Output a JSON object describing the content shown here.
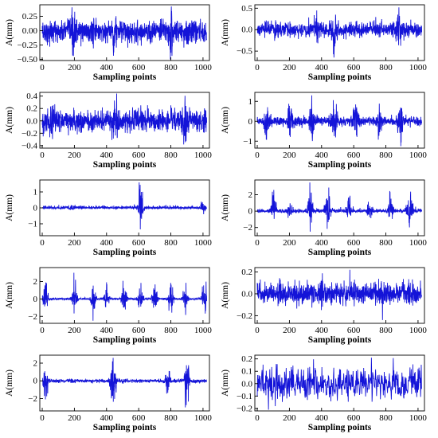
{
  "chart_data": [
    {
      "type": "line",
      "xlabel": "Sampling points",
      "ylabel": "A(mm)",
      "xlim": [
        -15,
        1040
      ],
      "ylim": [
        -0.52,
        0.45
      ],
      "xticks": [
        "0",
        "200",
        "400",
        "600",
        "800",
        "1000"
      ],
      "yticks": [
        "0.25",
        "0.00",
        "−0.25",
        "−0.50"
      ],
      "ytick_values": [
        0.25,
        0.0,
        -0.25,
        -0.5
      ],
      "color": "#1414d8",
      "series": [
        {
          "n_points": 1024,
          "amplitude": 0.14,
          "peak_min": -0.5,
          "peak_max": 0.42,
          "bursts": [
            {
              "x": 195,
              "amp": 0.2
            },
            {
              "x": 450,
              "amp": 0.12
            },
            {
              "x": 805,
              "amp": 0.2
            }
          ]
        }
      ]
    },
    {
      "type": "line",
      "xlabel": "Sampling points",
      "ylabel": "A(mm)",
      "xlim": [
        -15,
        1040
      ],
      "ylim": [
        -0.72,
        0.58
      ],
      "xticks": [
        "0",
        "200",
        "400",
        "600",
        "800",
        "1000"
      ],
      "yticks": [
        "0.5",
        "0.0",
        "−0.5"
      ],
      "ytick_values": [
        0.5,
        0.0,
        -0.5
      ],
      "color": "#1414d8",
      "series": [
        {
          "n_points": 1024,
          "amplitude": 0.1,
          "peak_min": -0.65,
          "peak_max": 0.52,
          "bursts": [
            {
              "x": 480,
              "amp": 0.3
            },
            {
              "x": 370,
              "amp": 0.12
            },
            {
              "x": 880,
              "amp": 0.15
            }
          ]
        }
      ]
    },
    {
      "type": "line",
      "xlabel": "Sampling points",
      "ylabel": "A(mm)",
      "xlim": [
        -15,
        1040
      ],
      "ylim": [
        -0.44,
        0.46
      ],
      "xticks": [
        "0",
        "200",
        "400",
        "600",
        "800",
        "1000"
      ],
      "yticks": [
        "0.4",
        "0.2",
        "0.0",
        "−0.2",
        "−0.4"
      ],
      "ytick_values": [
        0.4,
        0.2,
        0.0,
        -0.2,
        -0.4
      ],
      "color": "#1414d8",
      "series": [
        {
          "n_points": 1024,
          "amplitude": 0.11,
          "peak_min": -0.38,
          "peak_max": 0.44,
          "bursts": [
            {
              "x": 460,
              "amp": 0.18
            },
            {
              "x": 890,
              "amp": 0.14
            },
            {
              "x": 60,
              "amp": 0.1
            }
          ]
        }
      ]
    },
    {
      "type": "line",
      "xlabel": "Sampling points",
      "ylabel": "A(mm)",
      "xlim": [
        -15,
        1040
      ],
      "ylim": [
        -1.35,
        1.45
      ],
      "xticks": [
        "0",
        "200",
        "400",
        "600",
        "800",
        "1000"
      ],
      "yticks": [
        "1",
        "0",
        "−1"
      ],
      "ytick_values": [
        1,
        0,
        -1
      ],
      "color": "#1414d8",
      "series": [
        {
          "n_points": 1024,
          "amplitude": 0.16,
          "peak_min": -1.25,
          "peak_max": 1.3,
          "bursts": [
            {
              "x": 60,
              "amp": 0.6
            },
            {
              "x": 205,
              "amp": 0.6
            },
            {
              "x": 340,
              "amp": 0.8
            },
            {
              "x": 480,
              "amp": 0.8
            },
            {
              "x": 610,
              "amp": 0.6
            },
            {
              "x": 760,
              "amp": 0.6
            },
            {
              "x": 890,
              "amp": 0.7
            }
          ]
        }
      ]
    },
    {
      "type": "line",
      "xlabel": "Sampling points",
      "ylabel": "A(mm)",
      "xlim": [
        -15,
        1040
      ],
      "ylim": [
        -1.75,
        1.75
      ],
      "xticks": [
        "0",
        "200",
        "400",
        "600",
        "800",
        "1000"
      ],
      "yticks": [
        "1",
        "0",
        "−1"
      ],
      "ytick_values": [
        1,
        0,
        -1
      ],
      "color": "#1414d8",
      "series": [
        {
          "n_points": 1024,
          "amplitude": 0.07,
          "peak_min": -1.35,
          "peak_max": 1.6,
          "bursts": [
            {
              "x": 610,
              "amp": 1.2
            },
            {
              "x": 1000,
              "amp": 0.25
            },
            {
              "x": 180,
              "amp": 0.12
            }
          ]
        }
      ]
    },
    {
      "type": "line",
      "xlabel": "Sampling points",
      "ylabel": "A(mm)",
      "xlim": [
        -15,
        1040
      ],
      "ylim": [
        -3.0,
        3.8
      ],
      "xticks": [
        "0",
        "200",
        "400",
        "600",
        "800",
        "1000"
      ],
      "yticks": [
        "2",
        "0",
        "−2"
      ],
      "ytick_values": [
        2,
        0,
        -2
      ],
      "color": "#1414d8",
      "series": [
        {
          "n_points": 1024,
          "amplitude": 0.15,
          "peak_min": -2.5,
          "peak_max": 3.5,
          "bursts": [
            {
              "x": 100,
              "amp": 1.2
            },
            {
              "x": 200,
              "amp": 0.6
            },
            {
              "x": 330,
              "amp": 1.5
            },
            {
              "x": 440,
              "amp": 1.8
            },
            {
              "x": 570,
              "amp": 1.0
            },
            {
              "x": 700,
              "amp": 0.8
            },
            {
              "x": 830,
              "amp": 1.0
            },
            {
              "x": 950,
              "amp": 2.4
            }
          ]
        }
      ]
    },
    {
      "type": "line",
      "xlabel": "Sampling points",
      "ylabel": "A(mm)",
      "xlim": [
        -15,
        1040
      ],
      "ylim": [
        -2.8,
        3.6
      ],
      "xticks": [
        "0",
        "200",
        "400",
        "600",
        "800",
        "1000"
      ],
      "yticks": [
        "2",
        "0",
        "−2"
      ],
      "ytick_values": [
        2,
        0,
        -2
      ],
      "color": "#1414d8",
      "series": [
        {
          "n_points": 1024,
          "amplitude": 0.12,
          "peak_min": -2.5,
          "peak_max": 3.0,
          "bursts": [
            {
              "x": 20,
              "amp": 2.4
            },
            {
              "x": 200,
              "amp": 2.2
            },
            {
              "x": 315,
              "amp": 2.2
            },
            {
              "x": 400,
              "amp": 1.5
            },
            {
              "x": 510,
              "amp": 2.0
            },
            {
              "x": 610,
              "amp": 2.2
            },
            {
              "x": 700,
              "amp": 1.8
            },
            {
              "x": 800,
              "amp": 2.4
            },
            {
              "x": 890,
              "amp": 1.8
            },
            {
              "x": 1010,
              "amp": 2.0
            }
          ]
        }
      ]
    },
    {
      "type": "line",
      "xlabel": "Sampling points",
      "ylabel": "A(mm)",
      "xlim": [
        -15,
        1040
      ],
      "ylim": [
        -0.27,
        0.24
      ],
      "xticks": [
        "0",
        "200",
        "400",
        "600",
        "800",
        "1000"
      ],
      "yticks": [
        "0.2",
        "0.0",
        "−0.2"
      ],
      "ytick_values": [
        0.2,
        0.0,
        -0.2
      ],
      "color": "#1414d8",
      "series": [
        {
          "n_points": 1024,
          "amplitude": 0.075,
          "peak_min": -0.24,
          "peak_max": 0.22,
          "bursts": [
            {
              "x": 400,
              "amp": 0.05
            },
            {
              "x": 780,
              "amp": 0.04
            }
          ]
        }
      ]
    },
    {
      "type": "line",
      "xlabel": "Sampling points",
      "ylabel": "A(mm)",
      "xlim": [
        -15,
        1040
      ],
      "ylim": [
        -3.4,
        2.9
      ],
      "xticks": [
        "0",
        "200",
        "400",
        "600",
        "800",
        "1000"
      ],
      "yticks": [
        "2",
        "0",
        "−2"
      ],
      "ytick_values": [
        2,
        0,
        -2
      ],
      "color": "#1414d8",
      "series": [
        {
          "n_points": 1024,
          "amplitude": 0.12,
          "peak_min": -3.0,
          "peak_max": 2.6,
          "bursts": [
            {
              "x": 20,
              "amp": 1.2
            },
            {
              "x": 440,
              "amp": 2.4
            },
            {
              "x": 780,
              "amp": 1.0
            },
            {
              "x": 900,
              "amp": 2.0
            }
          ]
        }
      ]
    },
    {
      "type": "line",
      "xlabel": "Sampling points",
      "ylabel": "A(mm)",
      "xlim": [
        -15,
        1040
      ],
      "ylim": [
        -0.22,
        0.23
      ],
      "xticks": [
        "0",
        "200",
        "400",
        "600",
        "800",
        "1000"
      ],
      "yticks": [
        "0.2",
        "0.1",
        "0.0",
        "−0.1",
        "−0.2"
      ],
      "ytick_values": [
        0.2,
        0.1,
        0.0,
        -0.1,
        -0.2
      ],
      "color": "#1414d8",
      "series": [
        {
          "n_points": 512,
          "amplitude": 0.085,
          "peak_min": -0.21,
          "peak_max": 0.21,
          "bursts": [
            {
              "x": 850,
              "amp": 0.04
            },
            {
              "x": 100,
              "amp": 0.03
            }
          ]
        }
      ]
    }
  ]
}
